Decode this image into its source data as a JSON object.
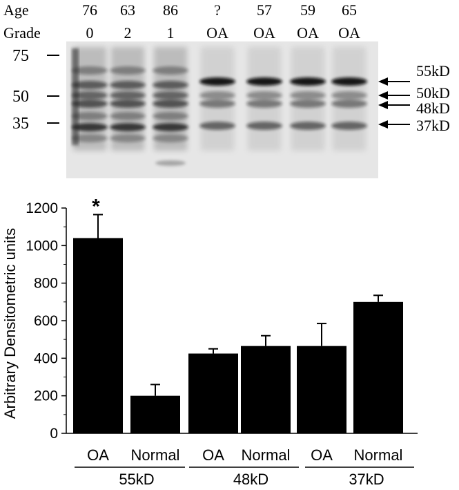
{
  "blot": {
    "row_labels": {
      "age": "Age",
      "grade": "Grade"
    },
    "lanes": [
      {
        "age": "76",
        "grade": "0"
      },
      {
        "age": "63",
        "grade": "2"
      },
      {
        "age": "86",
        "grade": "1"
      },
      {
        "age": "?",
        "grade": "OA"
      },
      {
        "age": "57",
        "grade": "OA"
      },
      {
        "age": "59",
        "grade": "OA"
      },
      {
        "age": "65",
        "grade": "OA"
      }
    ],
    "markers": [
      "75",
      "50",
      "35"
    ],
    "band_labels": [
      "55kD",
      "50kD",
      "48kD",
      "37kD"
    ]
  },
  "chart_data": {
    "type": "bar",
    "categories": [
      "OA",
      "Normal",
      "OA",
      "Normal",
      "OA",
      "Normal"
    ],
    "groups": [
      "55kD",
      "48kD",
      "37kD"
    ],
    "values": [
      1040,
      200,
      425,
      465,
      465,
      700
    ],
    "errors": [
      125,
      60,
      25,
      55,
      120,
      35
    ],
    "significance": [
      "*",
      "",
      "",
      "",
      "",
      ""
    ],
    "ylabel": "Arbitrary Densitometric units",
    "ylim": [
      0,
      1200
    ],
    "yticks": [
      "0",
      "200",
      "400",
      "600",
      "800",
      "1000",
      "1200"
    ],
    "bar_color": "#000000"
  }
}
